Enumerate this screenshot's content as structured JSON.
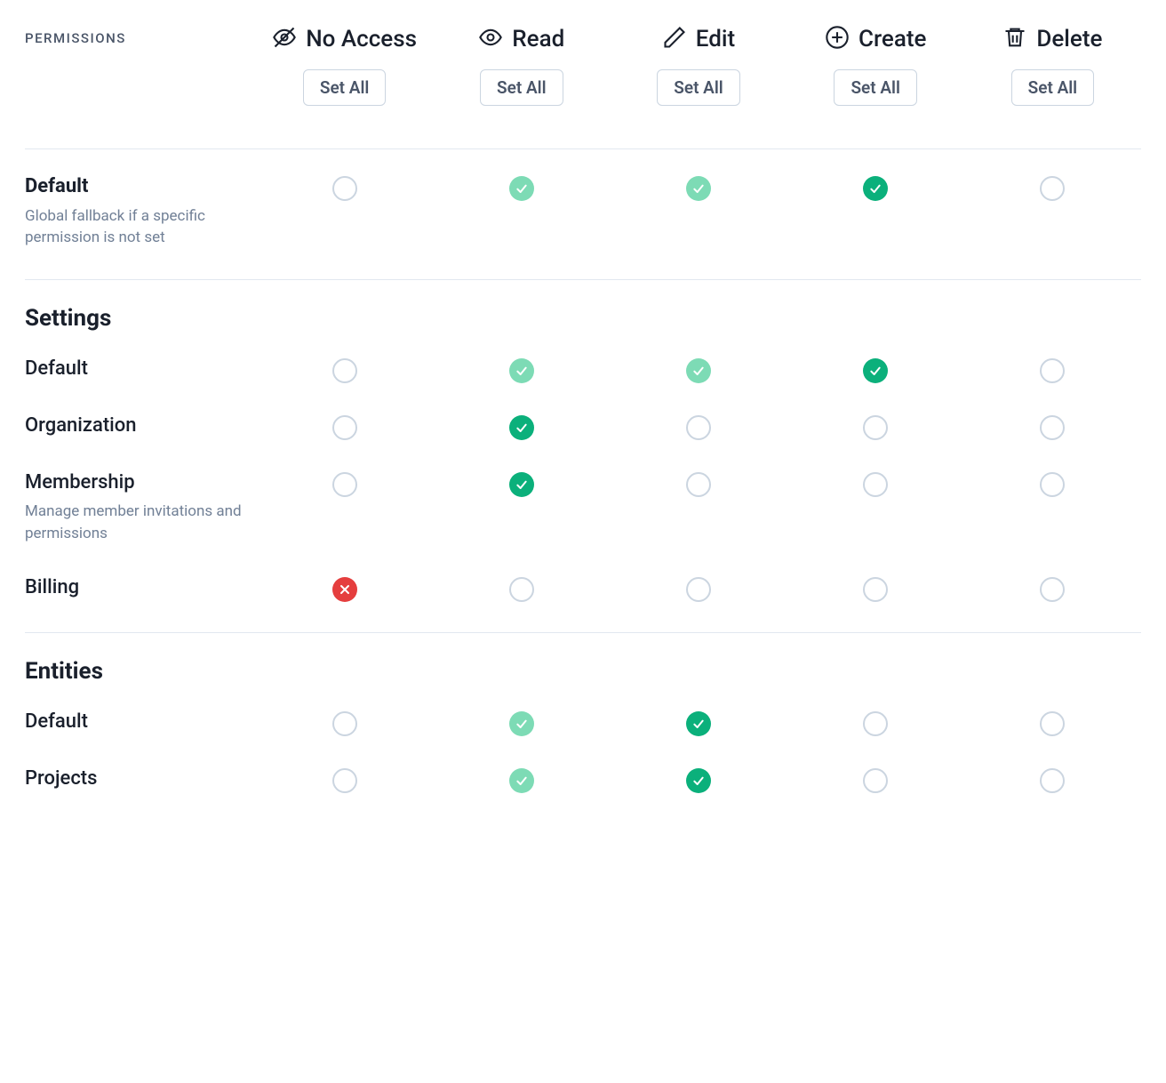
{
  "header": {
    "label": "PERMISSIONS",
    "columns": [
      {
        "key": "no_access",
        "label": "No Access",
        "icon": "eye-off-icon",
        "set_all": "Set All"
      },
      {
        "key": "read",
        "label": "Read",
        "icon": "eye-icon",
        "set_all": "Set All"
      },
      {
        "key": "edit",
        "label": "Edit",
        "icon": "pencil-icon",
        "set_all": "Set All"
      },
      {
        "key": "create",
        "label": "Create",
        "icon": "plus-circle-icon",
        "set_all": "Set All"
      },
      {
        "key": "delete",
        "label": "Delete",
        "icon": "trash-icon",
        "set_all": "Set All"
      }
    ]
  },
  "colors": {
    "check_full": "#0bb07b",
    "check_light": "#7ddbb5",
    "denied": "#e53e3e",
    "empty_border": "#cbd5e0",
    "text": "#1a202c",
    "muted": "#718096",
    "divider": "#e2e8f0",
    "background": "#ffffff"
  },
  "sections": [
    {
      "title": null,
      "rows": [
        {
          "label": "Default",
          "bold": true,
          "desc": "Global fallback if a specific permission is not set",
          "cells": [
            "empty",
            "check-light",
            "check-light",
            "check-full",
            "empty"
          ]
        }
      ]
    },
    {
      "title": "Settings",
      "rows": [
        {
          "label": "Default",
          "desc": null,
          "cells": [
            "empty",
            "check-light",
            "check-light",
            "check-full",
            "empty"
          ]
        },
        {
          "label": "Organization",
          "desc": null,
          "cells": [
            "empty",
            "check-full",
            "empty",
            "empty",
            "empty"
          ]
        },
        {
          "label": "Membership",
          "desc": "Manage member invitations and permissions",
          "cells": [
            "empty",
            "check-full",
            "empty",
            "empty",
            "empty"
          ]
        },
        {
          "label": "Billing",
          "desc": null,
          "cells": [
            "denied",
            "empty",
            "empty",
            "empty",
            "empty"
          ]
        }
      ]
    },
    {
      "title": "Entities",
      "rows": [
        {
          "label": "Default",
          "desc": null,
          "cells": [
            "empty",
            "check-light",
            "check-full",
            "empty",
            "empty"
          ]
        },
        {
          "label": "Projects",
          "desc": null,
          "cells": [
            "empty",
            "check-light",
            "check-full",
            "empty",
            "empty"
          ]
        }
      ]
    }
  ]
}
